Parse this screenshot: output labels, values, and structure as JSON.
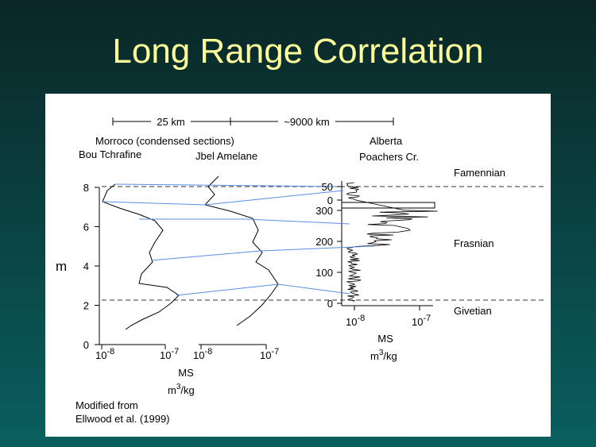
{
  "slide": {
    "title": "Long Range Correlation"
  },
  "figure": {
    "scale_bar": [
      "25 km",
      "~9000 km"
    ],
    "headers": {
      "morocco": "Morroco (condensed sections)",
      "bou": "Bou Tchrafine",
      "jbel": "Jbel Amelane",
      "alberta": "Alberta",
      "poachers": "Poachers Cr."
    },
    "stages": [
      "Famennian",
      "Frasnian",
      "Givetian"
    ],
    "left_axis": {
      "label": "m",
      "ticks": [
        0,
        2,
        4,
        6,
        8
      ]
    },
    "right_axis": {
      "ticks": [
        0,
        100,
        200,
        300
      ],
      "upper_ticks": [
        0,
        50
      ]
    },
    "x_labels": [
      [
        "10",
        "-8"
      ],
      [
        "10",
        "-7"
      ]
    ],
    "units": {
      "name": "MS",
      "base": "m",
      "exp": "3",
      "rest": "/kg"
    },
    "note": [
      "Modified from",
      "Ellwood et al. (1999)"
    ]
  }
}
